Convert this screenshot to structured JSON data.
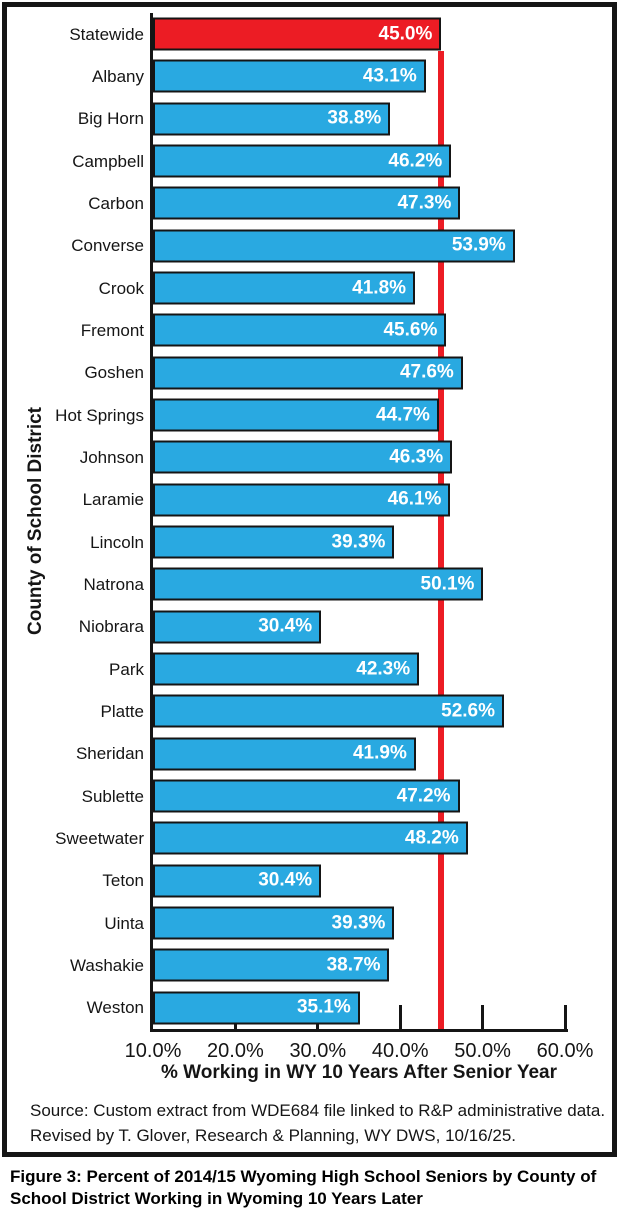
{
  "chart_data": {
    "type": "bar",
    "orientation": "horizontal",
    "categories": [
      "Statewide",
      "Albany",
      "Big Horn",
      "Campbell",
      "Carbon",
      "Converse",
      "Crook",
      "Fremont",
      "Goshen",
      "Hot Springs",
      "Johnson",
      "Laramie",
      "Lincoln",
      "Natrona",
      "Niobrara",
      "Park",
      "Platte",
      "Sheridan",
      "Sublette",
      "Sweetwater",
      "Teton",
      "Uinta",
      "Washakie",
      "Weston"
    ],
    "values": [
      45.0,
      43.1,
      38.8,
      46.2,
      47.3,
      53.9,
      41.8,
      45.6,
      47.6,
      44.7,
      46.3,
      46.1,
      39.3,
      50.1,
      30.4,
      42.3,
      52.6,
      41.9,
      47.2,
      48.2,
      30.4,
      39.3,
      38.7,
      35.1
    ],
    "value_labels": [
      "45.0%",
      "43.1%",
      "38.8%",
      "46.2%",
      "47.3%",
      "53.9%",
      "41.8%",
      "45.6%",
      "47.6%",
      "44.7%",
      "46.3%",
      "46.1%",
      "39.3%",
      "50.1%",
      "30.4%",
      "42.3%",
      "52.6%",
      "41.9%",
      "47.2%",
      "48.2%",
      "30.4%",
      "39.3%",
      "38.7%",
      "35.1%"
    ],
    "highlight_category": "Statewide",
    "xlabel": "% Working in WY 10 Years After Senior Year",
    "ylabel": "County of School District",
    "xlim": [
      10,
      60
    ],
    "x_ticks": [
      {
        "value": 10,
        "label": "10.0%"
      },
      {
        "value": 20,
        "label": "20.0%"
      },
      {
        "value": 30,
        "label": "30.0%"
      },
      {
        "value": 40,
        "label": "40.0%"
      },
      {
        "value": 50,
        "label": "50.0%"
      },
      {
        "value": 60,
        "label": "60.0%"
      }
    ],
    "reference_line": {
      "value": 45.0,
      "color": "#EC1C24"
    },
    "bar_color": "#29A9E1",
    "highlight_color": "#EC1C24",
    "grid": false,
    "legend": false
  },
  "source": {
    "line1": "Source: Custom extract from WDE684 file linked to R&P administrative data.",
    "line2": "Revised by T. Glover, Research & Planning, WY DWS, 10/16/25."
  },
  "caption": "Figure 3: Percent of 2014/15 Wyoming High School Seniors by County of School District Working in Wyoming 10 Years Later"
}
